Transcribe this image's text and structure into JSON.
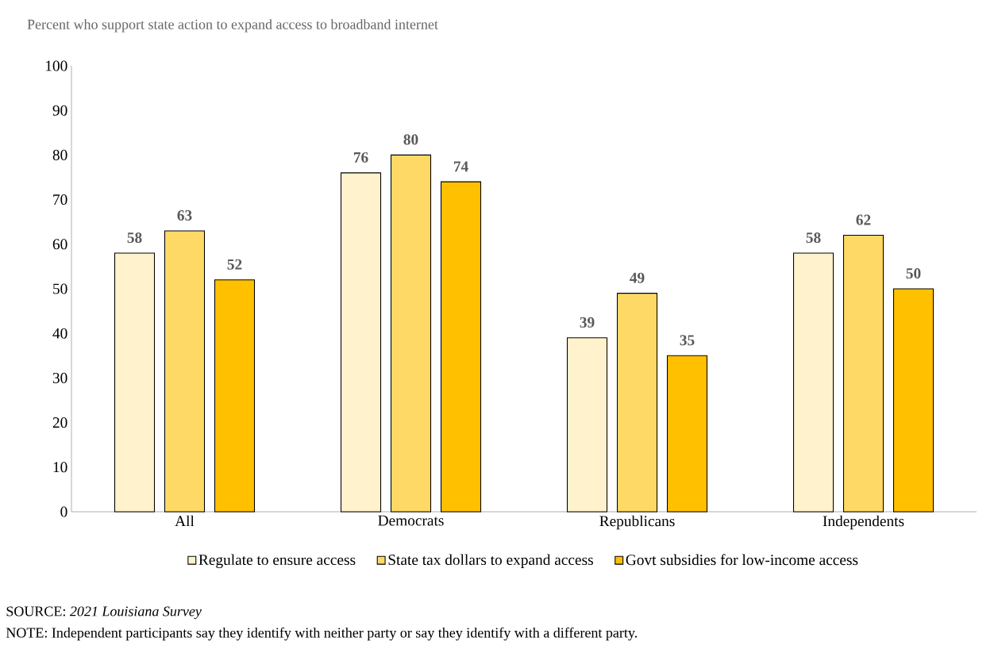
{
  "chart_data": {
    "type": "bar",
    "title": "Percent who support state action to expand access to broadband internet",
    "categories": [
      "All",
      "Democrats",
      "Republicans",
      "Independents"
    ],
    "series": [
      {
        "name": "Regulate to ensure access",
        "color": "#fff2cc",
        "values": [
          58,
          76,
          39,
          58
        ]
      },
      {
        "name": "State tax dollars to expand access",
        "color": "#ffd966",
        "values": [
          63,
          80,
          49,
          62
        ]
      },
      {
        "name": "Govt subsidies for low-income access",
        "color": "#ffc000",
        "values": [
          52,
          74,
          35,
          50
        ]
      }
    ],
    "ylim": [
      0,
      100
    ],
    "yticks": [
      0,
      10,
      20,
      30,
      40,
      50,
      60,
      70,
      80,
      90,
      100
    ],
    "data_labels": true,
    "legend": "bottom",
    "grid": false,
    "annotations": [
      "SOURCE: *2021 Louisiana Survey*",
      "NOTE: Independent participants say they identify with neither party or say they identify with a different party."
    ]
  }
}
